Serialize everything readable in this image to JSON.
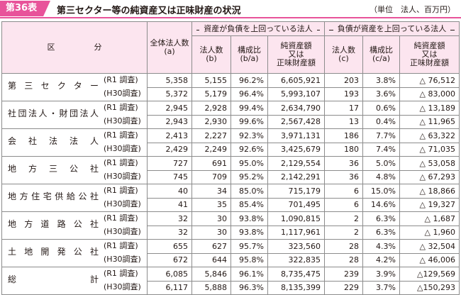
{
  "header": {
    "tag": "第36表",
    "title": "第三セクター等の純資産又は正味財産の状況",
    "unit": "（単位　法人、百万円）"
  },
  "columns": {
    "category": "区　分",
    "total": [
      "全体法人数",
      "(a)"
    ],
    "pos_group": "資産が負債を上回っている法人",
    "neg_group": "負債が資産を上回っている法人",
    "pos": {
      "count": [
        "法人数",
        "(b)"
      ],
      "ratio": [
        "構成比",
        "(b/a)"
      ],
      "amount": [
        "純資産額",
        "又は",
        "正味財産額"
      ]
    },
    "neg": {
      "count": [
        "法人数",
        "(c)"
      ],
      "ratio": [
        "構成比",
        "(c/a)"
      ],
      "amount": [
        "純資産額",
        "又は",
        "正味財産額"
      ]
    }
  },
  "rows": [
    {
      "name": "第三セクター",
      "r1": {
        "yr": "(R1 調査)",
        "a": "5,358",
        "b": "5,155",
        "b_r": "96.2%",
        "b_amt": "6,605,921",
        "c": "203",
        "c_r": "3.8%",
        "c_amt": "△ 76,512"
      },
      "h30": {
        "yr": "(H30調査)",
        "a": "5,372",
        "b": "5,179",
        "b_r": "96.4%",
        "b_amt": "5,993,107",
        "c": "193",
        "c_r": "3.6%",
        "c_amt": "△ 83,000"
      }
    },
    {
      "name": "社団法人・財団法人",
      "r1": {
        "yr": "(R1 調査)",
        "a": "2,945",
        "b": "2,928",
        "b_r": "99.4%",
        "b_amt": "2,634,790",
        "c": "17",
        "c_r": "0.6%",
        "c_amt": "△ 13,189"
      },
      "h30": {
        "yr": "(H30調査)",
        "a": "2,943",
        "b": "2,930",
        "b_r": "99.6%",
        "b_amt": "2,567,428",
        "c": "13",
        "c_r": "0.4%",
        "c_amt": "△ 11,965"
      }
    },
    {
      "name": "会社法法人",
      "r1": {
        "yr": "(R1 調査)",
        "a": "2,413",
        "b": "2,227",
        "b_r": "92.3%",
        "b_amt": "3,971,131",
        "c": "186",
        "c_r": "7.7%",
        "c_amt": "△ 63,322"
      },
      "h30": {
        "yr": "(H30調査)",
        "a": "2,429",
        "b": "2,249",
        "b_r": "92.6%",
        "b_amt": "3,425,679",
        "c": "180",
        "c_r": "7.4%",
        "c_amt": "△ 71,035"
      }
    },
    {
      "name": "地方三公社",
      "r1": {
        "yr": "(R1 調査)",
        "a": "727",
        "b": "691",
        "b_r": "95.0%",
        "b_amt": "2,129,554",
        "c": "36",
        "c_r": "5.0%",
        "c_amt": "△ 53,058"
      },
      "h30": {
        "yr": "(H30調査)",
        "a": "745",
        "b": "709",
        "b_r": "95.2%",
        "b_amt": "2,142,291",
        "c": "36",
        "c_r": "4.8%",
        "c_amt": "△ 67,293"
      }
    },
    {
      "name": "地方住宅供給公社",
      "r1": {
        "yr": "(R1 調査)",
        "a": "40",
        "b": "34",
        "b_r": "85.0%",
        "b_amt": "715,179",
        "c": "6",
        "c_r": "15.0%",
        "c_amt": "△ 18,866"
      },
      "h30": {
        "yr": "(H30調査)",
        "a": "41",
        "b": "35",
        "b_r": "85.4%",
        "b_amt": "701,495",
        "c": "6",
        "c_r": "14.6%",
        "c_amt": "△ 19,327"
      }
    },
    {
      "name": "地方道路公社",
      "r1": {
        "yr": "(R1 調査)",
        "a": "32",
        "b": "30",
        "b_r": "93.8%",
        "b_amt": "1,090,815",
        "c": "2",
        "c_r": "6.3%",
        "c_amt": "△ 1,687"
      },
      "h30": {
        "yr": "(H30調査)",
        "a": "32",
        "b": "30",
        "b_r": "93.8%",
        "b_amt": "1,117,961",
        "c": "2",
        "c_r": "6.3%",
        "c_amt": "△ 1,960"
      }
    },
    {
      "name": "土地開発公社",
      "r1": {
        "yr": "(R1 調査)",
        "a": "655",
        "b": "627",
        "b_r": "95.7%",
        "b_amt": "323,560",
        "c": "28",
        "c_r": "4.3%",
        "c_amt": "△ 32,504"
      },
      "h30": {
        "yr": "(H30調査)",
        "a": "672",
        "b": "644",
        "b_r": "95.8%",
        "b_amt": "322,835",
        "c": "28",
        "c_r": "4.2%",
        "c_amt": "△ 46,006"
      }
    },
    {
      "name": "総　　　　　計",
      "r1": {
        "yr": "(R1 調査)",
        "a": "6,085",
        "b": "5,846",
        "b_r": "96.1%",
        "b_amt": "8,735,475",
        "c": "239",
        "c_r": "3.9%",
        "c_amt": "△129,569"
      },
      "h30": {
        "yr": "(H30調査)",
        "a": "6,117",
        "b": "5,888",
        "b_r": "96.3%",
        "b_amt": "8,135,399",
        "c": "229",
        "c_r": "3.7%",
        "c_amt": "△150,293"
      }
    }
  ],
  "colors": {
    "accent": "#e8539a",
    "header_bg": "#fce5ef"
  }
}
